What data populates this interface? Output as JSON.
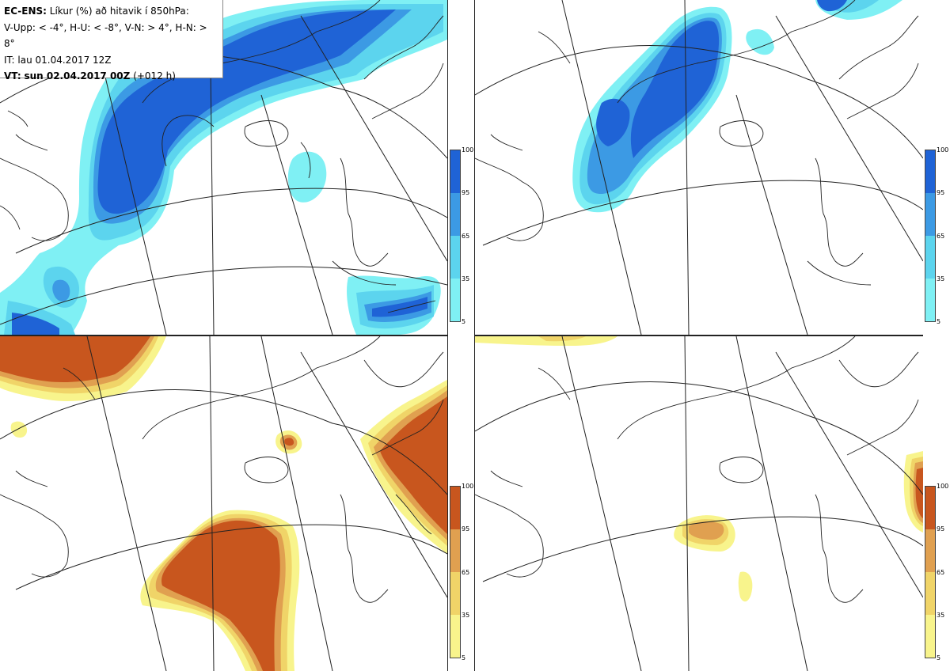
{
  "header": {
    "model": "EC-ENS:",
    "description": "Líkur (%) að hitavik í 850hPa:",
    "thresholds": "V-Upp: < -4°, H-U: < -8°, V-N: > 4°, H-N: > 8°",
    "initial_time": "IT: lau 01.04.2017 12Z",
    "valid_label": "VT:",
    "valid_time": "sun 02.04.2017 00Z",
    "lead": "(+012 h)"
  },
  "colorbar_ticks": [
    "100",
    "95",
    "65",
    "35",
    "5"
  ],
  "colors": {
    "cold_5": "#7ff0f4",
    "cold_35": "#5cd4ee",
    "cold_65": "#3c9ae4",
    "cold_95": "#1f63d6",
    "warm_5": "#f8f48c",
    "warm_35": "#f0d468",
    "warm_65": "#e0a050",
    "warm_95": "#c8561e",
    "coast": "#222222"
  },
  "panels": [
    {
      "name": "V-Upp",
      "palette": "cold"
    },
    {
      "name": "H-U",
      "palette": "cold"
    },
    {
      "name": "V-N",
      "palette": "warm"
    },
    {
      "name": "H-N",
      "palette": "warm"
    }
  ]
}
